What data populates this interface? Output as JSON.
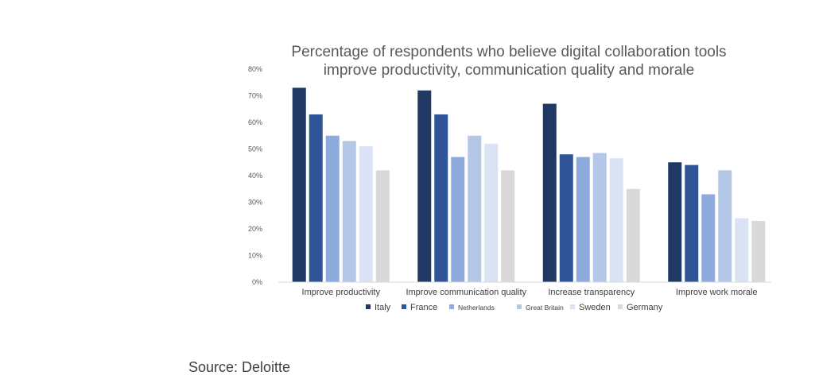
{
  "chart_data": {
    "type": "bar",
    "title_lines": [
      "Percentage of respondents who believe digital collaboration tools",
      "improve productivity, communication quality and morale"
    ],
    "categories": [
      "Improve productivity",
      "Improve communication quality",
      "Increase transparency",
      "Improve work morale"
    ],
    "series": [
      {
        "name": "Italy",
        "color": "#1f3864",
        "values": [
          73,
          72,
          67,
          45
        ]
      },
      {
        "name": "France",
        "color": "#2f5597",
        "values": [
          63,
          63,
          48,
          44
        ]
      },
      {
        "name": "Netherlands",
        "color": "#8faadc",
        "values": [
          55,
          47,
          47,
          33
        ]
      },
      {
        "name": "Great Britain",
        "color": "#b4c7e7",
        "values": [
          53,
          55,
          48.5,
          42
        ]
      },
      {
        "name": "Sweden",
        "color": "#dae3f3",
        "values": [
          51,
          52,
          46.5,
          24
        ]
      },
      {
        "name": "Germany",
        "color": "#d9d9d9",
        "values": [
          42,
          42,
          35,
          23
        ]
      }
    ],
    "y_ticks": [
      "0%",
      "10%",
      "20%",
      "30%",
      "40%",
      "50%",
      "60%",
      "70%",
      "80%"
    ],
    "ylim": [
      0,
      80
    ],
    "legend_position": "bottom",
    "grid": false
  },
  "source": "Source: Deloitte"
}
